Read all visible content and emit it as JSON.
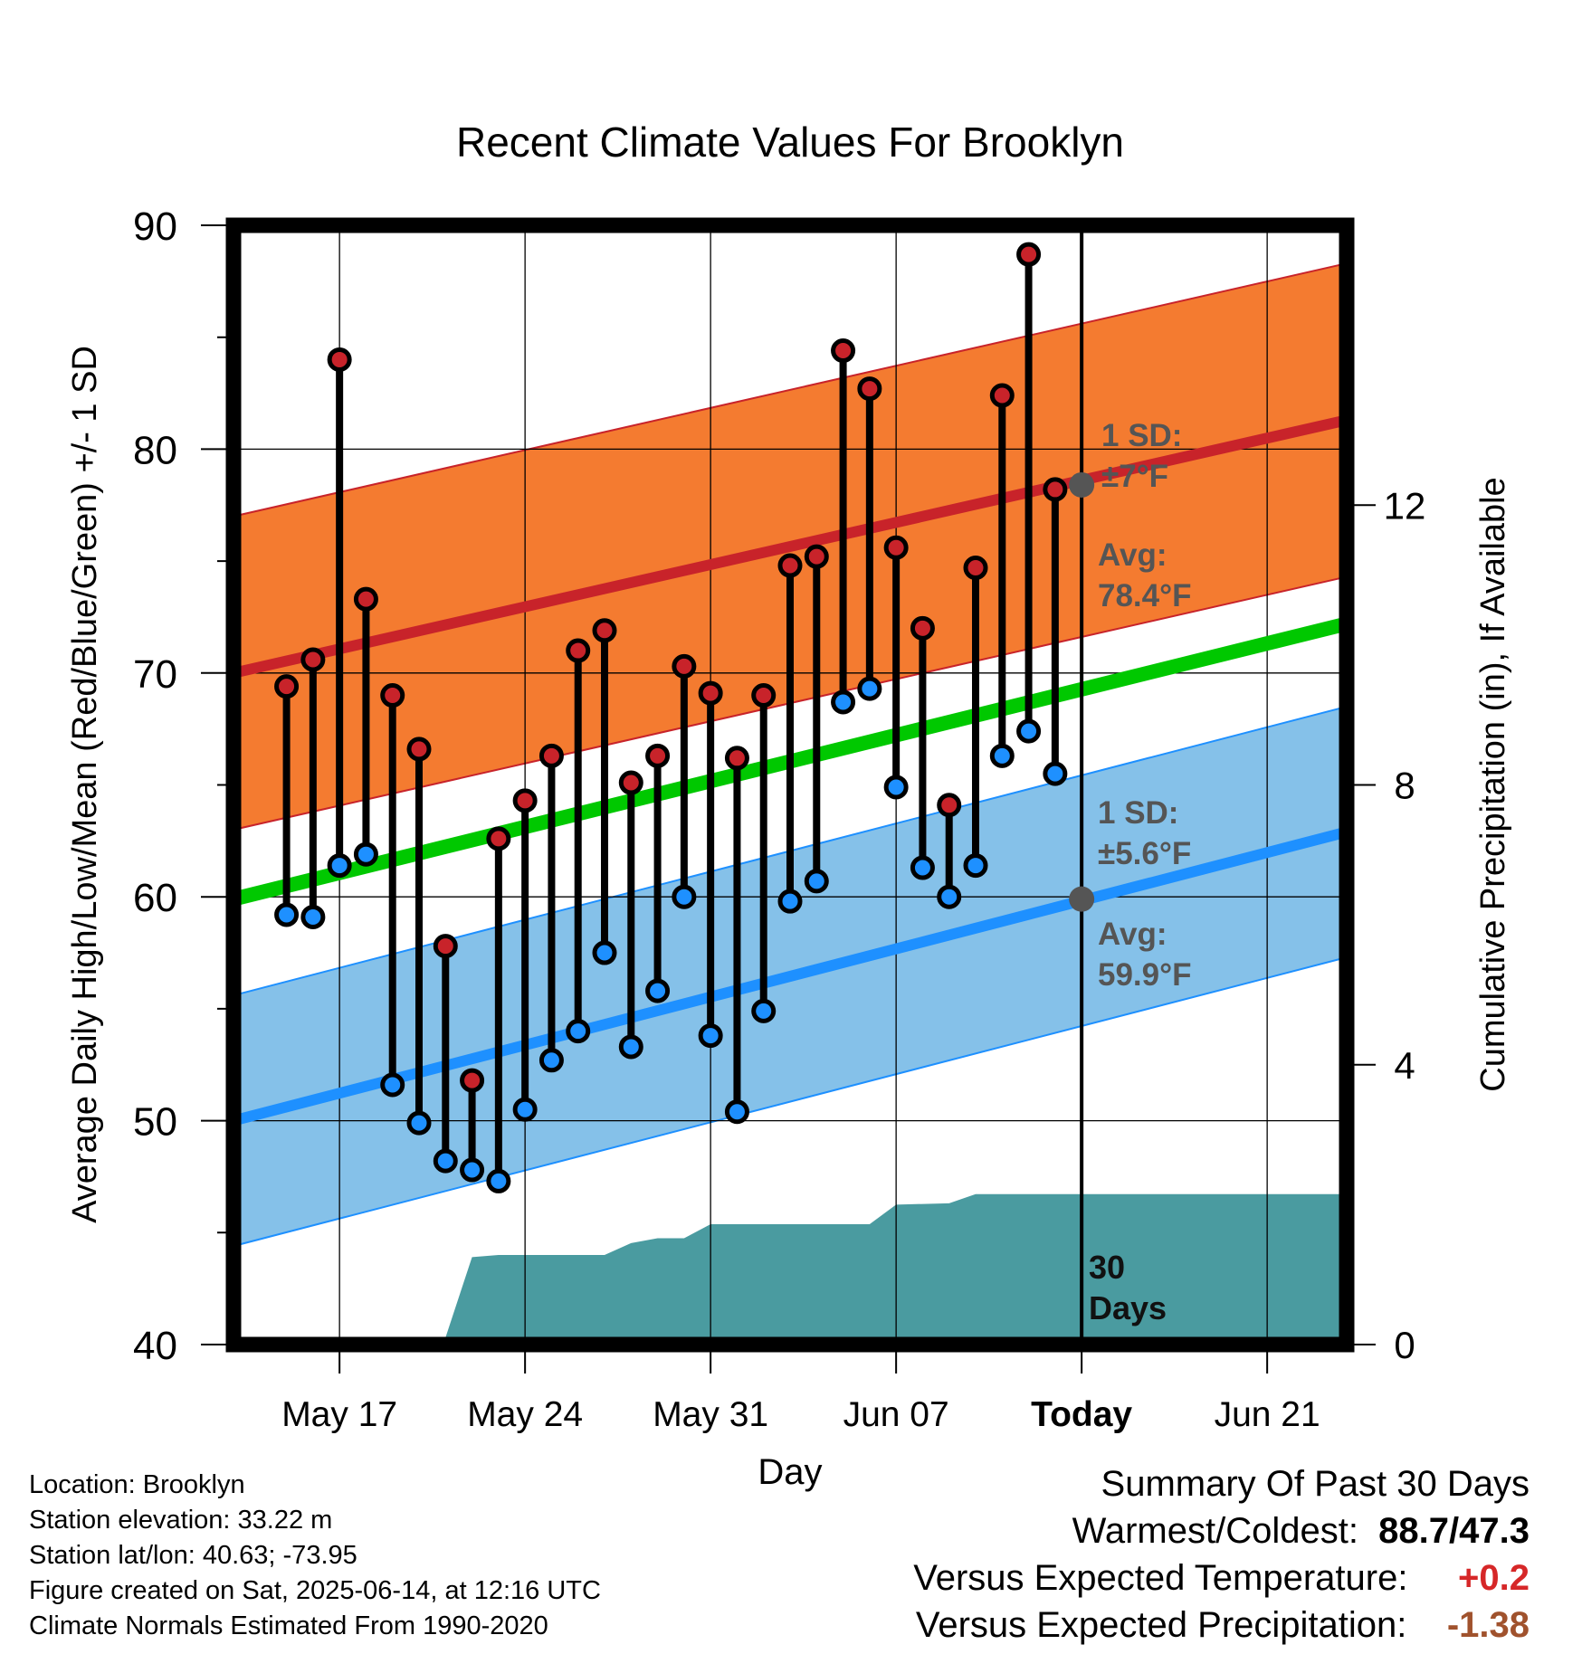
{
  "chart_data": {
    "type": "line",
    "title": "Recent Climate Values For Brooklyn",
    "xlabel": "Day",
    "ylabel": "Average Daily High/Low/Mean (Red/Blue/Green) +/- 1 SD",
    "y2label": "Cumulative Precipitation (in), If Available",
    "ylim": [
      40,
      90
    ],
    "y2lim": [
      0,
      16
    ],
    "yticks": [
      40,
      50,
      60,
      70,
      80,
      90
    ],
    "y2ticks": [
      0,
      4,
      8,
      12
    ],
    "xrange": [
      "2025-05-13",
      "2025-06-24"
    ],
    "xticks": [
      {
        "date": "2025-05-17",
        "label": "May 17"
      },
      {
        "date": "2025-05-24",
        "label": "May 24"
      },
      {
        "date": "2025-05-31",
        "label": "May 31"
      },
      {
        "date": "2025-06-07",
        "label": "Jun 07"
      },
      {
        "date": "2025-06-14",
        "label": "Today"
      },
      {
        "date": "2025-06-21",
        "label": "Jun 21"
      }
    ],
    "days": [
      "2025-05-15",
      "2025-05-16",
      "2025-05-17",
      "2025-05-18",
      "2025-05-19",
      "2025-05-20",
      "2025-05-21",
      "2025-05-22",
      "2025-05-23",
      "2025-05-24",
      "2025-05-25",
      "2025-05-26",
      "2025-05-27",
      "2025-05-28",
      "2025-05-29",
      "2025-05-30",
      "2025-05-31",
      "2025-06-01",
      "2025-06-02",
      "2025-06-03",
      "2025-06-04",
      "2025-06-05",
      "2025-06-06",
      "2025-06-07",
      "2025-06-08",
      "2025-06-09",
      "2025-06-10",
      "2025-06-11",
      "2025-06-12",
      "2025-06-13"
    ],
    "series": [
      {
        "name": "High",
        "color": "#c8232a",
        "values": [
          69.4,
          70.6,
          84.0,
          73.3,
          69.0,
          66.6,
          57.8,
          51.8,
          62.6,
          64.3,
          66.3,
          71.0,
          71.9,
          65.1,
          66.3,
          70.3,
          69.1,
          66.2,
          69.0,
          74.8,
          75.2,
          84.4,
          82.7,
          75.6,
          72.0,
          64.1,
          74.7,
          82.4,
          88.7,
          78.2
        ]
      },
      {
        "name": "Low",
        "color": "#1e90ff",
        "values": [
          59.2,
          59.1,
          61.4,
          61.9,
          51.6,
          49.9,
          48.2,
          47.8,
          47.3,
          50.5,
          52.7,
          54.0,
          57.5,
          53.3,
          55.8,
          60.0,
          53.8,
          50.4,
          54.9,
          59.8,
          60.7,
          68.7,
          69.3,
          64.9,
          61.3,
          60.0,
          61.4,
          66.3,
          67.4,
          65.5
        ]
      }
    ],
    "normals": {
      "dates": [
        "2025-05-13",
        "2025-06-24"
      ],
      "high_mean": [
        70.0,
        81.3
      ],
      "high_sd": 7.0,
      "low_mean": [
        50.0,
        62.9
      ],
      "low_sd": 5.6,
      "mean": [
        59.9,
        72.2
      ]
    },
    "precip_cumulative": {
      "points": [
        [
          "2025-05-13",
          0.0
        ],
        [
          "2025-05-20",
          0.0
        ],
        [
          "2025-05-21",
          0.1
        ],
        [
          "2025-05-22",
          1.25
        ],
        [
          "2025-05-23",
          1.28
        ],
        [
          "2025-05-27",
          1.28
        ],
        [
          "2025-05-28",
          1.45
        ],
        [
          "2025-05-29",
          1.52
        ],
        [
          "2025-05-30",
          1.52
        ],
        [
          "2025-05-31",
          1.72
        ],
        [
          "2025-06-06",
          1.72
        ],
        [
          "2025-06-07",
          2.0
        ],
        [
          "2025-06-09",
          2.02
        ],
        [
          "2025-06-10",
          2.15
        ],
        [
          "2025-06-24",
          2.15
        ]
      ],
      "color": "#4a9ba0"
    },
    "today": "2025-06-14",
    "today_point_high": 78.4,
    "today_point_low": 59.9,
    "annotations": {
      "high_sd_line1": "1 SD:",
      "high_sd_line2": "±7°F",
      "high_avg_line1": "Avg:",
      "high_avg_line2": "78.4°F",
      "low_sd_line1": "1 SD:",
      "low_sd_line2": "±5.6°F",
      "low_avg_line1": "Avg:",
      "low_avg_line2": "59.9°F",
      "days_line1": "30",
      "days_line2": "Days"
    },
    "colors": {
      "high_band": "#f47b30",
      "high_line": "#c8232a",
      "low_band": "#85c1e9",
      "low_line": "#1e90ff",
      "mean_line": "#00c800",
      "annotation_text": "#555555"
    }
  },
  "info": {
    "location": "Location: Brooklyn",
    "elevation": "Station elevation: 33.22 m",
    "latlon": "Station lat/lon: 40.63; -73.95",
    "created": "Figure created on Sat, 2025-06-14, at 12:16 UTC",
    "normals": "Climate Normals Estimated From 1990-2020"
  },
  "summary": {
    "title": "Summary Of Past 30 Days",
    "warmest_label": "Warmest/Coldest:",
    "warmest_value": "88.7/47.3",
    "temp_label": "Versus Expected Temperature:",
    "temp_value": "+0.2",
    "temp_color": "#d62728",
    "precip_label": "Versus Expected Precipitation:",
    "precip_value": "-1.38",
    "precip_color": "#a0522d"
  }
}
